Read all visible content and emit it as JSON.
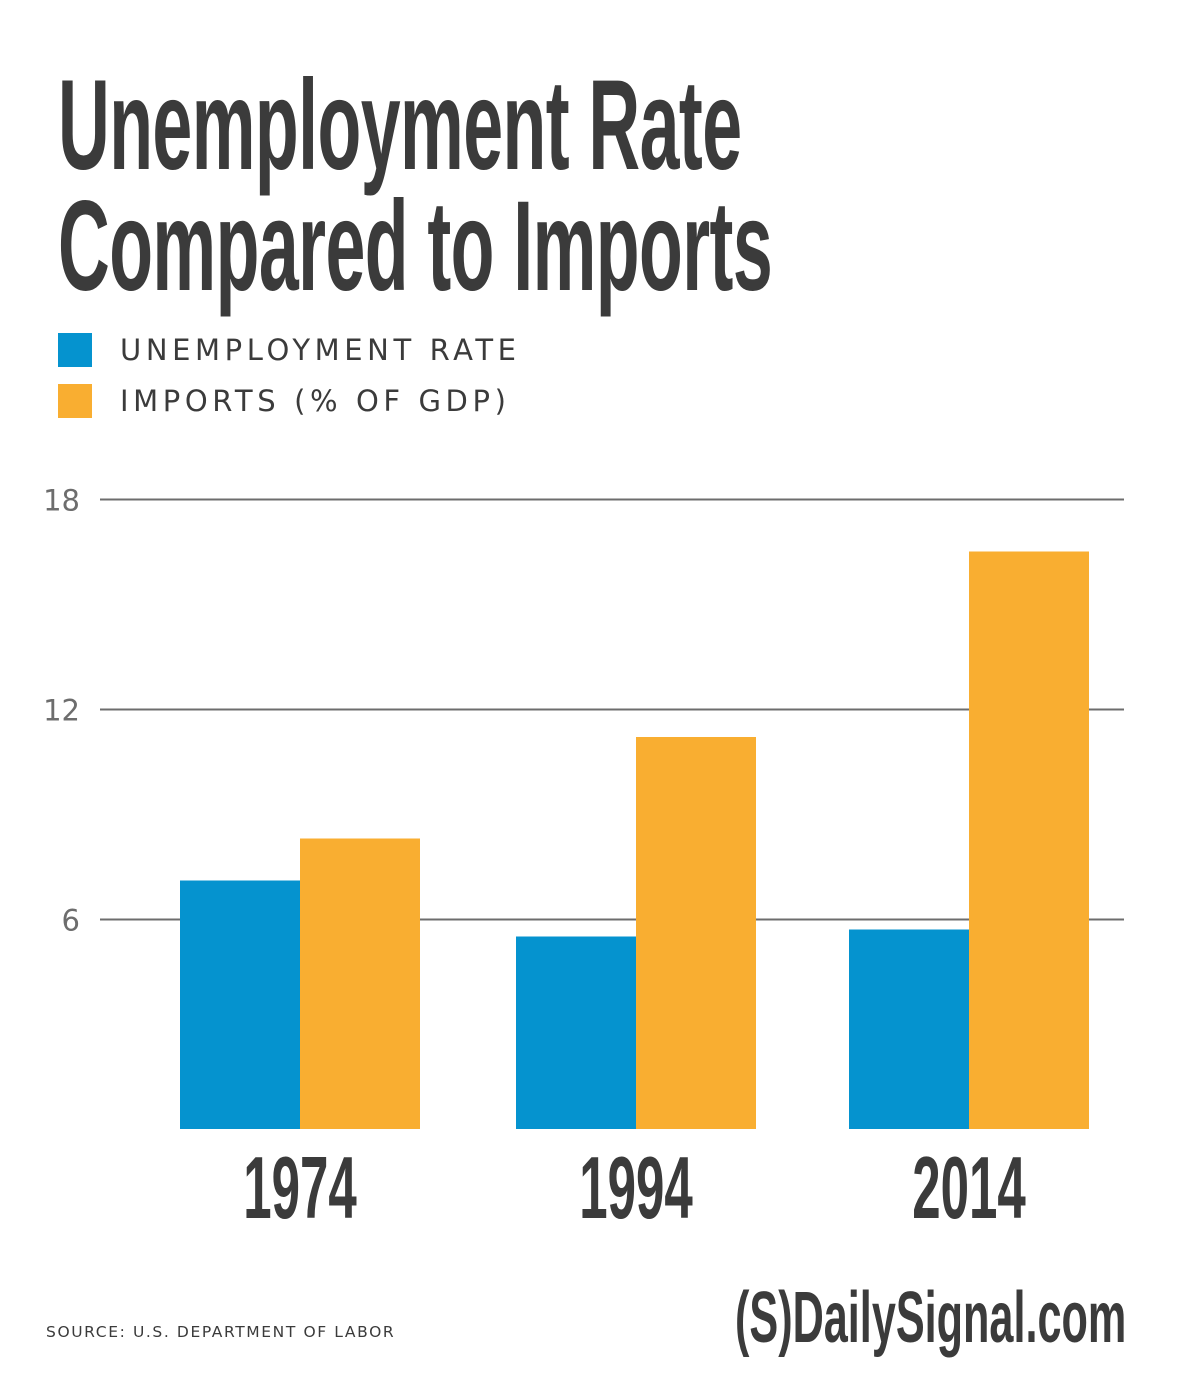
{
  "header": {
    "title_line1": "Unemployment Rate",
    "title_line2": "Compared to Imports"
  },
  "legend": [
    {
      "label": "UNEMPLOYMENT RATE",
      "color": "#0593CF",
      "icon": "square-swatch"
    },
    {
      "label": "IMPORTS (% OF GDP)",
      "color": "#F9AE31",
      "icon": "square-swatch"
    }
  ],
  "footer": {
    "source": "SOURCE: U.S. DEPARTMENT OF LABOR",
    "brand": "(S)DailySignal.com"
  },
  "colors": {
    "text": "#3B3B3B",
    "grid": "#6D6D6D",
    "tick_label": "#6D6D6D",
    "background": "#FFFFFF"
  },
  "chart_data": {
    "type": "bar",
    "title": "Unemployment Rate Compared to Imports",
    "xlabel": "",
    "ylabel": "",
    "categories": [
      "1974",
      "1994",
      "2014"
    ],
    "series": [
      {
        "name": "UNEMPLOYMENT RATE",
        "color": "#0593CF",
        "values": [
          7.1,
          5.5,
          5.7
        ]
      },
      {
        "name": "IMPORTS (% OF GDP)",
        "color": "#F9AE31",
        "values": [
          8.3,
          11.2,
          16.5
        ]
      }
    ],
    "yticks": [
      6,
      12,
      18
    ],
    "ylim": [
      0,
      18
    ],
    "grid": true,
    "legend_position": "top-left",
    "source": "SOURCE: U.S. DEPARTMENT OF LABOR"
  }
}
